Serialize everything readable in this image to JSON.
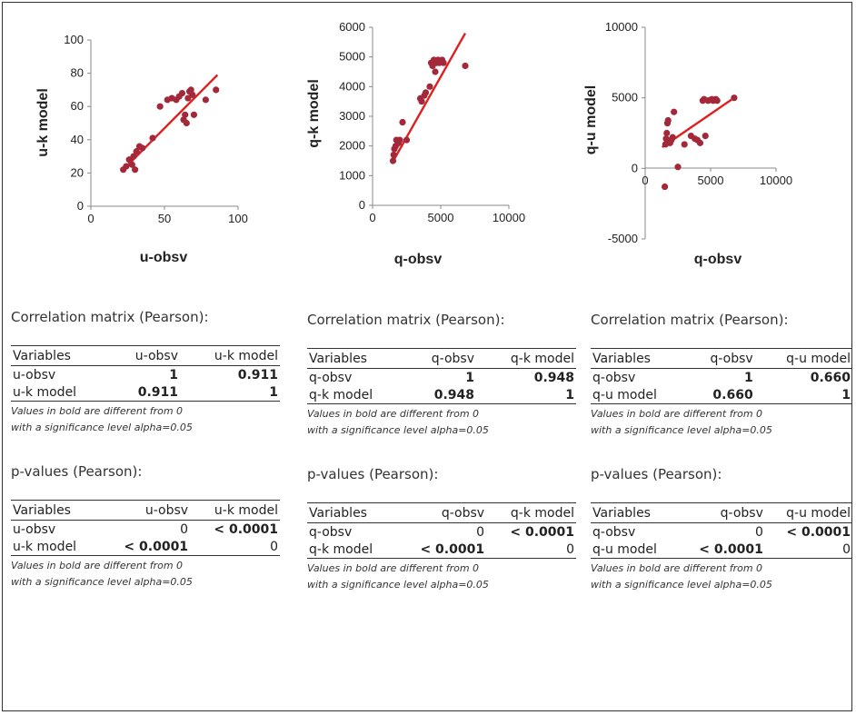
{
  "charts": [
    {
      "xlabel": "u-obsv",
      "ylabel": "u-k model",
      "xticks": [
        "0",
        "50",
        "100"
      ],
      "yticks": [
        "0",
        "20",
        "40",
        "60",
        "80",
        "100"
      ]
    },
    {
      "xlabel": "q-obsv",
      "ylabel": "q-k model",
      "xticks": [
        "0",
        "5000",
        "10000"
      ],
      "yticks": [
        "0",
        "1000",
        "2000",
        "3000",
        "4000",
        "5000",
        "6000"
      ]
    },
    {
      "xlabel": "q-obsv",
      "ylabel": "q-u model",
      "xticks": [
        "0",
        "5000",
        "10000"
      ],
      "yticks": [
        "-5000",
        "0",
        "5000",
        "10000"
      ]
    }
  ],
  "chart_data": [
    {
      "type": "scatter",
      "xlabel": "u-obsv",
      "ylabel": "u-k model",
      "xlim": [
        0,
        100
      ],
      "ylim": [
        0,
        100
      ],
      "grid": false,
      "color": "#a3283a",
      "trend_color": "#e02020",
      "points": [
        [
          22,
          22
        ],
        [
          24,
          24
        ],
        [
          26,
          28
        ],
        [
          28,
          25
        ],
        [
          29,
          30
        ],
        [
          30,
          22
        ],
        [
          31,
          33
        ],
        [
          33,
          36
        ],
        [
          35,
          35
        ],
        [
          42,
          41
        ],
        [
          47,
          60
        ],
        [
          52,
          64
        ],
        [
          55,
          65
        ],
        [
          58,
          64
        ],
        [
          60,
          66
        ],
        [
          62,
          68
        ],
        [
          63,
          52
        ],
        [
          64,
          55
        ],
        [
          65,
          50
        ],
        [
          66,
          65
        ],
        [
          67,
          69
        ],
        [
          68,
          70
        ],
        [
          69,
          67
        ],
        [
          70,
          55
        ],
        [
          78,
          64
        ],
        [
          85,
          70
        ]
      ],
      "trendline": [
        [
          22,
          22
        ],
        [
          86,
          79
        ]
      ]
    },
    {
      "type": "scatter",
      "xlabel": "q-obsv",
      "ylabel": "q-k model",
      "xlim": [
        0,
        10000
      ],
      "ylim": [
        0,
        6000
      ],
      "grid": false,
      "color": "#a3283a",
      "trend_color": "#e02020",
      "points": [
        [
          1500,
          1500
        ],
        [
          1550,
          1700
        ],
        [
          1600,
          1900
        ],
        [
          1700,
          2000
        ],
        [
          1750,
          2200
        ],
        [
          1900,
          2100
        ],
        [
          2000,
          2200
        ],
        [
          2200,
          2800
        ],
        [
          2500,
          2200
        ],
        [
          3500,
          3600
        ],
        [
          3600,
          3500
        ],
        [
          3800,
          3700
        ],
        [
          3900,
          3800
        ],
        [
          4200,
          4000
        ],
        [
          4300,
          4800
        ],
        [
          4400,
          4700
        ],
        [
          4500,
          4900
        ],
        [
          4600,
          4500
        ],
        [
          4700,
          4800
        ],
        [
          4800,
          4900
        ],
        [
          4900,
          4800
        ],
        [
          5000,
          4850
        ],
        [
          5100,
          4900
        ],
        [
          5200,
          4800
        ],
        [
          6800,
          4700
        ]
      ],
      "trendline": [
        [
          1400,
          1400
        ],
        [
          6800,
          5800
        ]
      ]
    },
    {
      "type": "scatter",
      "xlabel": "q-obsv",
      "ylabel": "q-u model",
      "xlim": [
        0,
        10000
      ],
      "ylim": [
        -5000,
        10000
      ],
      "grid": false,
      "color": "#a3283a",
      "trend_color": "#e02020",
      "points": [
        [
          1500,
          -1300
        ],
        [
          1550,
          1700
        ],
        [
          1600,
          2100
        ],
        [
          1650,
          2500
        ],
        [
          1700,
          3200
        ],
        [
          1750,
          3400
        ],
        [
          1900,
          1800
        ],
        [
          2000,
          2000
        ],
        [
          2100,
          2200
        ],
        [
          2200,
          4000
        ],
        [
          2500,
          100
        ],
        [
          3000,
          1700
        ],
        [
          3500,
          2300
        ],
        [
          3800,
          2100
        ],
        [
          4000,
          2000
        ],
        [
          4200,
          1800
        ],
        [
          4400,
          4800
        ],
        [
          4500,
          4900
        ],
        [
          4600,
          2300
        ],
        [
          4800,
          4800
        ],
        [
          5000,
          4850
        ],
        [
          5100,
          4900
        ],
        [
          5200,
          4800
        ],
        [
          5400,
          4900
        ],
        [
          5500,
          4800
        ],
        [
          6800,
          5000
        ]
      ],
      "trendline": [
        [
          1300,
          1500
        ],
        [
          6800,
          5000
        ]
      ]
    }
  ],
  "panels": [
    {
      "corr_title": "Correlation matrix (Pearson):",
      "p_title": "p-values (Pearson):",
      "headers": [
        "Variables",
        "u-obsv",
        "u-k model"
      ],
      "corr_rows": [
        [
          "u-obsv",
          "1",
          "0.911"
        ],
        [
          "u-k model",
          "0.911",
          "1"
        ]
      ],
      "p_rows": [
        [
          "u-obsv",
          "0",
          "< 0.0001"
        ],
        [
          "u-k model",
          "< 0.0001",
          "0"
        ]
      ],
      "note1": "Values in bold are different from 0",
      "note2": "with a significance level alpha=0.05"
    },
    {
      "corr_title": "Correlation matrix (Pearson):",
      "p_title": "p-values (Pearson):",
      "headers": [
        "Variables",
        "q-obsv",
        "q-k model"
      ],
      "corr_rows": [
        [
          "q-obsv",
          "1",
          "0.948"
        ],
        [
          "q-k model",
          "0.948",
          "1"
        ]
      ],
      "p_rows": [
        [
          "q-obsv",
          "0",
          "< 0.0001"
        ],
        [
          "q-k model",
          "< 0.0001",
          "0"
        ]
      ],
      "note1": "Values in bold are different from 0",
      "note2": "with a significance level alpha=0.05"
    },
    {
      "corr_title": "Correlation matrix (Pearson):",
      "p_title": "p-values (Pearson):",
      "headers": [
        "Variables",
        "q-obsv",
        "q-u model"
      ],
      "corr_rows": [
        [
          "q-obsv",
          "1",
          "0.660"
        ],
        [
          "q-u model",
          "0.660",
          "1"
        ]
      ],
      "p_rows": [
        [
          "q-obsv",
          "0",
          "< 0.0001"
        ],
        [
          "q-u model",
          "< 0.0001",
          "0"
        ]
      ],
      "note1": "Values in bold are different from 0",
      "note2": "with a significance level alpha=0.05"
    }
  ]
}
